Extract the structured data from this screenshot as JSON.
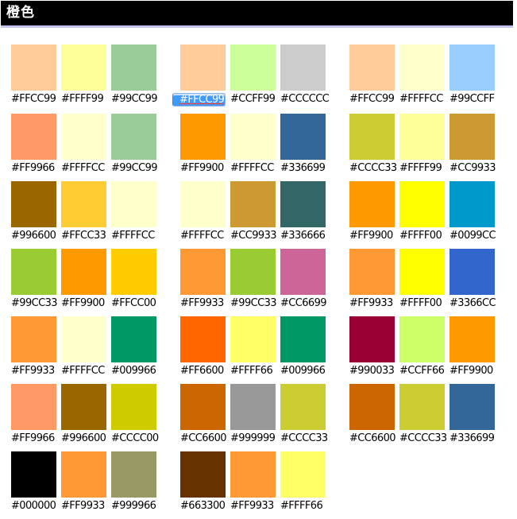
{
  "header": {
    "title": "橙色"
  },
  "theme": {
    "header_bg": "#000000",
    "header_text": "#FFFFFF",
    "header_underline": "#C3C3EF",
    "selection_bg": "#3E9BFD",
    "selection_text": "#FFFFFF",
    "selection_border": "#8AB4E8",
    "selection_topstrip": "#C9E0F9",
    "selection_squiggle": "#E03A2F"
  },
  "palette": {
    "selected_cell": {
      "row": 0,
      "group": 1,
      "cell": 0
    },
    "rows": [
      [
        [
          "#FFCC99",
          "#FFFF99",
          "#99CC99"
        ],
        [
          "#FFCC99",
          "#CCFF99",
          "#CCCCCC"
        ],
        [
          "#FFCC99",
          "#FFFFCC",
          "#99CCFF"
        ]
      ],
      [
        [
          "#FF9966",
          "#FFFFCC",
          "#99CC99"
        ],
        [
          "#FF9900",
          "#FFFFCC",
          "#336699"
        ],
        [
          "#CCCC33",
          "#FFFF99",
          "#CC9933"
        ]
      ],
      [
        [
          "#996600",
          "#FFCC33",
          "#FFFFCC"
        ],
        [
          "#FFFFCC",
          "#CC9933",
          "#336666"
        ],
        [
          "#FF9900",
          "#FFFF00",
          "#0099CC"
        ]
      ],
      [
        [
          "#99CC33",
          "#FF9900",
          "#FFCC00"
        ],
        [
          "#FF9933",
          "#99CC33",
          "#CC6699"
        ],
        [
          "#FF9933",
          "#FFFF00",
          "#3366CC"
        ]
      ],
      [
        [
          "#FF9933",
          "#FFFFCC",
          "#009966"
        ],
        [
          "#FF6600",
          "#FFFF66",
          "#009966"
        ],
        [
          "#990033",
          "#CCFF66",
          "#FF9900"
        ]
      ],
      [
        [
          "#FF9966",
          "#996600",
          "#CCCC00"
        ],
        [
          "#CC6600",
          "#999999",
          "#CCCC33"
        ],
        [
          "#CC6600",
          "#CCCC33",
          "#336699"
        ]
      ],
      [
        [
          "#000000",
          "#FF9933",
          "#999966"
        ],
        [
          "#663300",
          "#FF9933",
          "#FFFF66"
        ]
      ]
    ]
  }
}
